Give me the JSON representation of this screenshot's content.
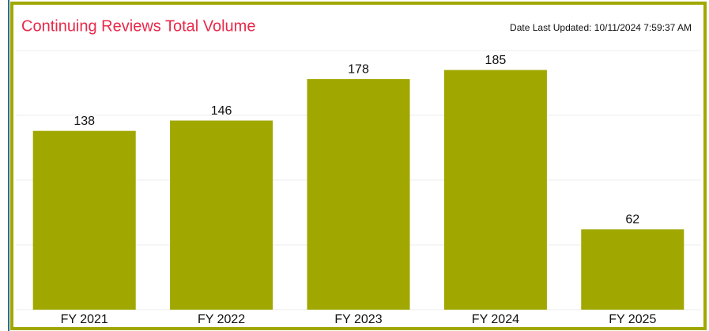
{
  "chart_data": {
    "type": "bar",
    "title": "Continuing Reviews Total Volume",
    "subtitle": "Date Last Updated: 10/11/2024 7:59:37 AM",
    "categories": [
      "FY 2021",
      "FY 2022",
      "FY 2023",
      "FY 2024",
      "FY 2025"
    ],
    "values": [
      138,
      146,
      178,
      185,
      62
    ],
    "color": "#a0a800",
    "ylim": [
      0,
      200
    ],
    "yticks": [
      0,
      50,
      100,
      150,
      200
    ],
    "grid": true
  }
}
